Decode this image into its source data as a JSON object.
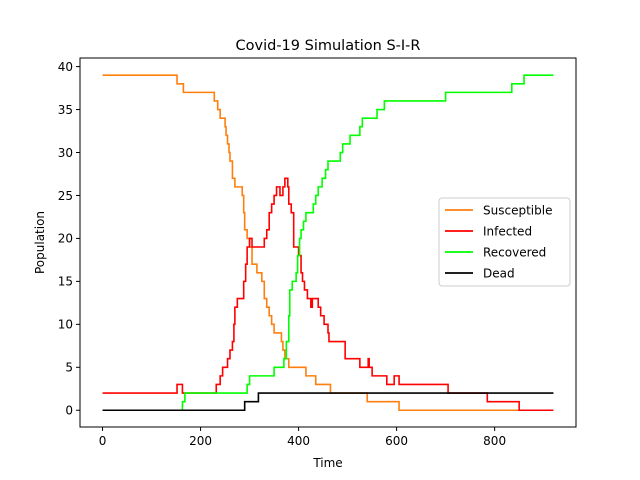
{
  "chart_data": {
    "type": "line",
    "title": "Covid-19 Simulation S-I-R",
    "xlabel": "Time",
    "ylabel": "Population",
    "xlim": [
      -46,
      966
    ],
    "ylim": [
      -1.95,
      41.0
    ],
    "xticks": [
      0,
      200,
      400,
      600,
      800
    ],
    "yticks": [
      0,
      5,
      10,
      15,
      20,
      25,
      30,
      35,
      40
    ],
    "grid": false,
    "legend_position": "center-right",
    "series": [
      {
        "name": "Susceptible",
        "color": "#ff7f0e",
        "step": true,
        "points": [
          [
            0,
            39
          ],
          [
            150,
            39
          ],
          [
            152,
            38
          ],
          [
            165,
            37
          ],
          [
            228,
            36
          ],
          [
            235,
            35
          ],
          [
            240,
            34
          ],
          [
            250,
            33
          ],
          [
            252,
            32
          ],
          [
            255,
            31
          ],
          [
            258,
            30
          ],
          [
            260,
            29
          ],
          [
            265,
            27
          ],
          [
            270,
            26
          ],
          [
            285,
            25
          ],
          [
            288,
            23
          ],
          [
            290,
            21
          ],
          [
            295,
            20
          ],
          [
            300,
            19
          ],
          [
            305,
            17
          ],
          [
            315,
            16
          ],
          [
            325,
            15
          ],
          [
            330,
            13
          ],
          [
            335,
            12
          ],
          [
            340,
            11
          ],
          [
            345,
            10
          ],
          [
            350,
            9
          ],
          [
            365,
            8
          ],
          [
            368,
            7
          ],
          [
            372,
            6
          ],
          [
            380,
            5
          ],
          [
            410,
            5
          ],
          [
            415,
            4
          ],
          [
            430,
            4
          ],
          [
            435,
            3
          ],
          [
            460,
            3
          ],
          [
            465,
            2
          ],
          [
            535,
            2
          ],
          [
            540,
            1
          ],
          [
            600,
            1
          ],
          [
            605,
            0
          ],
          [
            920,
            0
          ]
        ]
      },
      {
        "name": "Infected",
        "color": "#ff0000",
        "step": true,
        "points": [
          [
            0,
            2
          ],
          [
            150,
            2
          ],
          [
            152,
            3
          ],
          [
            160,
            3
          ],
          [
            163,
            2
          ],
          [
            228,
            2
          ],
          [
            232,
            3
          ],
          [
            240,
            4
          ],
          [
            245,
            5
          ],
          [
            255,
            6
          ],
          [
            260,
            7
          ],
          [
            265,
            8
          ],
          [
            268,
            10
          ],
          [
            270,
            12
          ],
          [
            275,
            13
          ],
          [
            288,
            15
          ],
          [
            292,
            17
          ],
          [
            295,
            19
          ],
          [
            300,
            20
          ],
          [
            305,
            19
          ],
          [
            325,
            19
          ],
          [
            330,
            20
          ],
          [
            335,
            21
          ],
          [
            340,
            23
          ],
          [
            345,
            24
          ],
          [
            350,
            25
          ],
          [
            355,
            26
          ],
          [
            362,
            25
          ],
          [
            368,
            26
          ],
          [
            372,
            27
          ],
          [
            378,
            26
          ],
          [
            380,
            24
          ],
          [
            385,
            23
          ],
          [
            390,
            19
          ],
          [
            400,
            18
          ],
          [
            405,
            16
          ],
          [
            408,
            15
          ],
          [
            412,
            14
          ],
          [
            418,
            13
          ],
          [
            425,
            12
          ],
          [
            428,
            13
          ],
          [
            435,
            13
          ],
          [
            440,
            12
          ],
          [
            445,
            11
          ],
          [
            452,
            10
          ],
          [
            460,
            9
          ],
          [
            462,
            8
          ],
          [
            480,
            8
          ],
          [
            495,
            6
          ],
          [
            520,
            6
          ],
          [
            525,
            5
          ],
          [
            540,
            5
          ],
          [
            542,
            6
          ],
          [
            544,
            5
          ],
          [
            550,
            4
          ],
          [
            580,
            3
          ],
          [
            590,
            3
          ],
          [
            595,
            4
          ],
          [
            600,
            4
          ],
          [
            605,
            3
          ],
          [
            700,
            3
          ],
          [
            705,
            2
          ],
          [
            780,
            2
          ],
          [
            785,
            1
          ],
          [
            845,
            1
          ],
          [
            850,
            0
          ],
          [
            920,
            0
          ]
        ]
      },
      {
        "name": "Recovered",
        "color": "#00ff00",
        "step": true,
        "points": [
          [
            0,
            0
          ],
          [
            160,
            0
          ],
          [
            163,
            1
          ],
          [
            168,
            2
          ],
          [
            290,
            2
          ],
          [
            295,
            3
          ],
          [
            300,
            4
          ],
          [
            345,
            4
          ],
          [
            350,
            5
          ],
          [
            365,
            5
          ],
          [
            370,
            6
          ],
          [
            375,
            8
          ],
          [
            380,
            11
          ],
          [
            382,
            14
          ],
          [
            387,
            15
          ],
          [
            395,
            16
          ],
          [
            398,
            18
          ],
          [
            402,
            20
          ],
          [
            405,
            21
          ],
          [
            410,
            22
          ],
          [
            415,
            23
          ],
          [
            430,
            24
          ],
          [
            435,
            25
          ],
          [
            440,
            26
          ],
          [
            448,
            27
          ],
          [
            455,
            28
          ],
          [
            460,
            29
          ],
          [
            485,
            30
          ],
          [
            490,
            31
          ],
          [
            505,
            32
          ],
          [
            525,
            33
          ],
          [
            530,
            34
          ],
          [
            560,
            35
          ],
          [
            575,
            36
          ],
          [
            650,
            36
          ],
          [
            700,
            37
          ],
          [
            835,
            38
          ],
          [
            860,
            39
          ],
          [
            920,
            39
          ]
        ]
      },
      {
        "name": "Dead",
        "color": "#000000",
        "step": true,
        "points": [
          [
            0,
            0
          ],
          [
            285,
            0
          ],
          [
            290,
            1
          ],
          [
            315,
            1
          ],
          [
            318,
            2
          ],
          [
            920,
            2
          ]
        ]
      }
    ]
  }
}
